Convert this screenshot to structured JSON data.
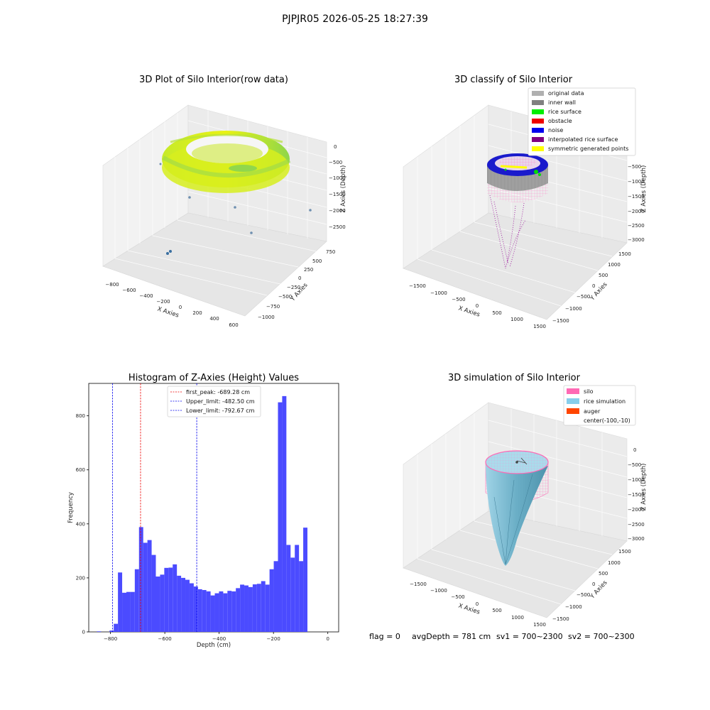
{
  "figure": {
    "suptitle": "PJPJR05 2026-05-25 18:27:39",
    "status": {
      "flag": "flag = 0",
      "avg_depth": "avgDepth = 781 cm",
      "sv1": "sv1 = 700~2300",
      "sv2": "sv2 = 700~2300"
    }
  },
  "panels": {
    "raw": {
      "title": "3D Plot of Silo Interior(row data)",
      "xlabel": "X Axies",
      "ylabel": "Y Axies",
      "zlabel": "Z Axies (Depth)",
      "xticks": [
        "−800",
        "−600",
        "−400",
        "−200",
        "0",
        "200",
        "400",
        "600"
      ],
      "yticks": [
        "750",
        "500",
        "250",
        "0",
        "−250",
        "−500",
        "−750",
        "−1000"
      ],
      "zticks": [
        "0",
        "−500",
        "−1000",
        "−1500",
        "−2000",
        "−2500"
      ]
    },
    "classify": {
      "title": "3D classify of Silo Interior",
      "xlabel": "X Axies",
      "ylabel": "Y Axies",
      "zlabel": "Z Axies (Depth)",
      "xticks": [
        "−1500",
        "−1000",
        "−500",
        "0",
        "500",
        "1000",
        "1500"
      ],
      "yticks": [
        "1500",
        "1000",
        "500",
        "0",
        "−500",
        "−1000",
        "−1500"
      ],
      "zticks": [
        "−500",
        "−1000",
        "−1500",
        "−2000",
        "−2500",
        "−3000"
      ],
      "legend": [
        {
          "label": "original data",
          "color": "#b0b0b0"
        },
        {
          "label": "inner wall",
          "color": "#808080"
        },
        {
          "label": "rice surface",
          "color": "#00ee00"
        },
        {
          "label": "obstacle",
          "color": "#ee0000"
        },
        {
          "label": "noise",
          "color": "#0000ee"
        },
        {
          "label": "interpolated rice surface",
          "color": "#800080"
        },
        {
          "label": "symmetric generated points",
          "color": "#ffff00"
        }
      ]
    },
    "simulation": {
      "title": "3D simulation of Silo Interior",
      "xlabel": "X Axies",
      "ylabel": "Y Axies",
      "zlabel": "Z Axies (Depth)",
      "xticks": [
        "−1500",
        "−1000",
        "−500",
        "0",
        "500",
        "1000",
        "1500"
      ],
      "yticks": [
        "1500",
        "1000",
        "500",
        "0",
        "−500",
        "−1000",
        "−1500"
      ],
      "zticks": [
        "0",
        "−500",
        "−1000",
        "−1500",
        "−2000",
        "−2500",
        "−3000"
      ],
      "legend": [
        {
          "label": "silo",
          "color": "#ff69b4"
        },
        {
          "label": "rice simulation",
          "color": "#87ceeb"
        },
        {
          "label": "auger",
          "color": "#ff4500"
        },
        {
          "label": "center(-100,-10)",
          "color": ""
        }
      ]
    }
  },
  "chart_data": {
    "type": "bar",
    "title": "Histogram of Z-Axies (Height) Values",
    "xlabel": "Depth (cm)",
    "ylabel": "Frequency",
    "bar_color": "#4b4bff",
    "xlim": [
      -880,
      40
    ],
    "ylim": [
      0,
      920
    ],
    "xticks": [
      {
        "value": -800,
        "label": "−800"
      },
      {
        "value": -600,
        "label": "−600"
      },
      {
        "value": -400,
        "label": "−400"
      },
      {
        "value": -200,
        "label": "−200"
      },
      {
        "value": 0,
        "label": "0"
      }
    ],
    "yticks": [
      {
        "value": 0,
        "label": "0"
      },
      {
        "value": 200,
        "label": "200"
      },
      {
        "value": 400,
        "label": "400"
      },
      {
        "value": 600,
        "label": "600"
      },
      {
        "value": 800,
        "label": "800"
      }
    ],
    "bin_start": -850,
    "bin_width": 15.5,
    "counts": [
      2,
      0,
      0,
      5,
      30,
      220,
      145,
      148,
      148,
      232,
      388,
      330,
      340,
      285,
      205,
      212,
      237,
      238,
      250,
      208,
      200,
      193,
      180,
      168,
      158,
      155,
      150,
      135,
      143,
      150,
      143,
      152,
      150,
      162,
      175,
      172,
      166,
      176,
      178,
      188,
      175,
      232,
      262,
      850,
      873,
      322,
      275,
      322,
      262,
      386
    ],
    "vlines": [
      {
        "name": "first_peak: -689.28 cm",
        "value": -689.28,
        "color": "#ee0000"
      },
      {
        "name": "Upper_limit: -482.50 cm",
        "value": -482.5,
        "color": "#0000ee"
      },
      {
        "name": "Lower_limit: -792.67 cm",
        "value": -792.67,
        "color": "#0000ee"
      }
    ]
  }
}
